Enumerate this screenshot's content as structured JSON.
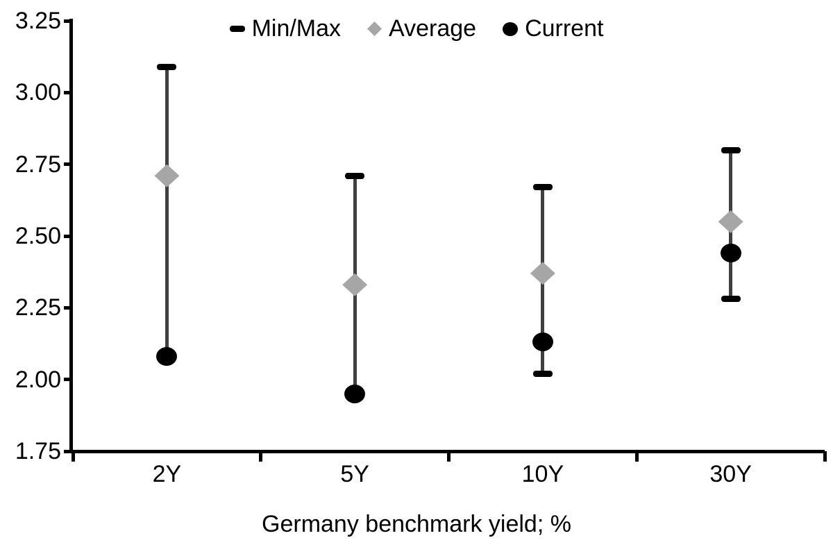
{
  "chart_data": {
    "type": "bar",
    "subtype": "min-max-range-with-markers",
    "title": "",
    "xlabel": "Germany benchmark yield; %",
    "ylabel": "",
    "categories": [
      "2Y",
      "5Y",
      "10Y",
      "30Y"
    ],
    "ylim": [
      1.75,
      3.25
    ],
    "yticks": [
      3.25,
      3.0,
      2.75,
      2.5,
      2.25,
      2.0,
      1.75
    ],
    "ytick_labels": [
      "3.25",
      "3.00",
      "2.75",
      "2.50",
      "2.25",
      "2.00",
      "1.75"
    ],
    "grid": false,
    "legend_position": "top-center",
    "series": [
      {
        "name": "Min/Max",
        "type": "range",
        "min": [
          2.08,
          1.95,
          2.02,
          2.28
        ],
        "max": [
          3.09,
          2.71,
          2.67,
          2.8
        ]
      },
      {
        "name": "Average",
        "type": "point",
        "marker": "diamond",
        "values": [
          2.71,
          2.33,
          2.37,
          2.55
        ]
      },
      {
        "name": "Current",
        "type": "point",
        "marker": "circle",
        "values": [
          2.08,
          1.95,
          2.13,
          2.44
        ]
      }
    ],
    "colors": {
      "axis": "#000000",
      "stem": "#404040",
      "minmax_cap": "#000000",
      "average": "#a6a6a6",
      "current": "#000000",
      "background": "#ffffff"
    }
  }
}
